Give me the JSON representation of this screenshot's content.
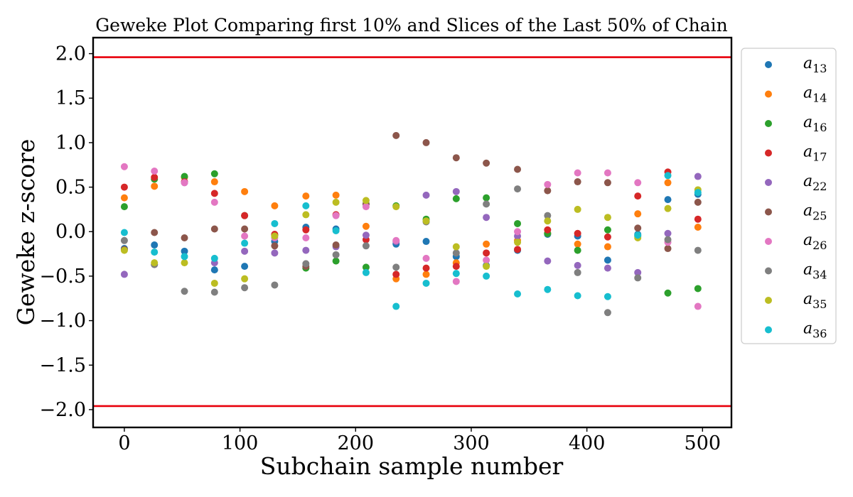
{
  "chart_data": {
    "type": "scatter",
    "title": "Geweke Plot Comparing first 10% and Slices of the Last 50% of Chain",
    "xlabel": "Subchain sample number",
    "ylabel": "Geweke z-score",
    "xlim": [
      -27,
      525
    ],
    "ylim": [
      -2.2,
      2.18
    ],
    "xticks": [
      0,
      100,
      200,
      300,
      400,
      500
    ],
    "yticks": [
      2.0,
      1.5,
      1.0,
      0.5,
      0.0,
      -0.5,
      -1.0,
      -1.5,
      -2.0
    ],
    "ytick_labels": [
      "2.0",
      "1.5",
      "1.0",
      "0.5",
      "0.0",
      "−0.5",
      "−1.0",
      "−1.5",
      "−2.0"
    ],
    "hlines": [
      {
        "y": 1.96,
        "color": "#e8000b"
      },
      {
        "y": -1.96,
        "color": "#e8000b"
      }
    ],
    "grid": false,
    "legend_position": "outside-right",
    "x": [
      0,
      26,
      52,
      78,
      104,
      130,
      157,
      183,
      209,
      235,
      261,
      287,
      313,
      340,
      366,
      392,
      418,
      444,
      470,
      496
    ],
    "series": [
      {
        "name": "a",
        "sub": "13",
        "color": "#1f77b4",
        "values": [
          -0.19,
          -0.15,
          -0.22,
          -0.43,
          -0.39,
          -0.11,
          0.05,
          0.03,
          0.31,
          -0.14,
          -0.11,
          -0.28,
          -0.38,
          -0.21,
          -0.03,
          -0.05,
          -0.32,
          -0.03,
          0.36,
          0.42
        ]
      },
      {
        "name": "a",
        "sub": "14",
        "color": "#ff7f0e",
        "values": [
          0.38,
          0.51,
          0.61,
          0.56,
          0.45,
          0.29,
          0.4,
          0.41,
          0.06,
          -0.53,
          -0.48,
          -0.35,
          -0.14,
          -0.1,
          -0.02,
          -0.14,
          -0.17,
          0.2,
          0.55,
          0.05
        ]
      },
      {
        "name": "a",
        "sub": "16",
        "color": "#2ca02c",
        "values": [
          0.28,
          0.59,
          0.62,
          0.65,
          0.18,
          -0.04,
          -0.41,
          -0.33,
          -0.4,
          0.29,
          0.14,
          0.37,
          0.38,
          0.09,
          -0.02,
          -0.21,
          0.02,
          -0.05,
          -0.69,
          -0.64
        ]
      },
      {
        "name": "a",
        "sub": "17",
        "color": "#d62728",
        "values": [
          0.5,
          0.61,
          0.56,
          0.43,
          0.18,
          -0.03,
          0.02,
          0.19,
          -0.09,
          -0.48,
          -0.41,
          -0.39,
          -0.24,
          -0.2,
          0.02,
          -0.02,
          -0.06,
          0.4,
          0.67,
          0.14
        ]
      },
      {
        "name": "a",
        "sub": "22",
        "color": "#9467bd",
        "values": [
          -0.48,
          -0.37,
          0.55,
          -0.35,
          -0.22,
          -0.24,
          -0.21,
          -0.17,
          -0.04,
          -0.11,
          0.41,
          0.45,
          0.16,
          -0.05,
          -0.33,
          -0.38,
          -0.41,
          -0.46,
          -0.02,
          0.62
        ]
      },
      {
        "name": "a",
        "sub": "25",
        "color": "#8c564b",
        "values": [
          -0.2,
          -0.01,
          -0.07,
          0.03,
          0.03,
          -0.16,
          -0.39,
          -0.15,
          0.31,
          1.08,
          1.0,
          0.83,
          0.77,
          0.7,
          0.46,
          0.56,
          0.55,
          0.04,
          -0.19,
          0.33
        ]
      },
      {
        "name": "a",
        "sub": "26",
        "color": "#e377c2",
        "values": [
          0.73,
          0.68,
          0.55,
          0.33,
          -0.05,
          -0.07,
          -0.07,
          0.18,
          0.28,
          -0.1,
          -0.3,
          -0.56,
          -0.32,
          0.0,
          0.53,
          0.66,
          0.66,
          0.55,
          -0.12,
          -0.84
        ]
      },
      {
        "name": "a",
        "sub": "34",
        "color": "#7f7f7f",
        "values": [
          -0.1,
          -0.37,
          -0.67,
          -0.68,
          -0.63,
          -0.6,
          -0.36,
          -0.26,
          -0.16,
          -0.4,
          0.11,
          -0.24,
          0.31,
          0.48,
          0.18,
          -0.46,
          -0.91,
          -0.52,
          -0.09,
          -0.21
        ]
      },
      {
        "name": "a",
        "sub": "35",
        "color": "#bcbd22",
        "values": [
          -0.21,
          -0.35,
          -0.35,
          -0.58,
          -0.53,
          -0.05,
          0.19,
          0.33,
          0.35,
          0.28,
          0.12,
          -0.17,
          -0.39,
          -0.12,
          0.12,
          0.25,
          0.16,
          -0.07,
          0.26,
          0.47
        ]
      },
      {
        "name": "a",
        "sub": "36",
        "color": "#17becf",
        "values": [
          -0.01,
          -0.23,
          -0.28,
          -0.3,
          -0.13,
          0.09,
          0.29,
          0.01,
          -0.46,
          -0.84,
          -0.58,
          -0.47,
          -0.5,
          -0.7,
          -0.65,
          -0.72,
          -0.73,
          -0.04,
          0.63,
          0.44
        ]
      }
    ]
  }
}
